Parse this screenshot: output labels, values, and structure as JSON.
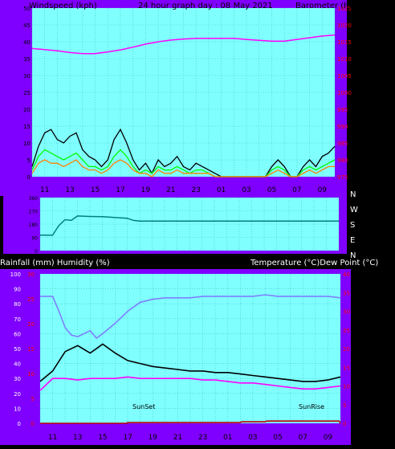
{
  "colors": {
    "background": "#000000",
    "frame": "#8000ff",
    "plot": "#80ffff",
    "grid": "#40c0c0",
    "axis_text_left": "#000000",
    "axis_text_right": "#ff0000",
    "label_text": "#ffffff",
    "black_line": "#000000",
    "magenta_line": "#ff00ff",
    "blue_line": "#7f7fff",
    "green_line": "#00ff00",
    "orange_line": "#ff8000",
    "teal_line": "#008080",
    "red_line": "#c00000"
  },
  "chart_data": [
    {
      "type": "line",
      "panel": "wind",
      "title": "24 hour graph day : 08 May 2021",
      "ylabel_left": "Windspeed (kph)",
      "ylabel_right": "Barometer (hpa)",
      "x_ticks": [
        "11",
        "13",
        "15",
        "17",
        "19",
        "21",
        "23",
        "01",
        "03",
        "05",
        "07",
        "09"
      ],
      "x_range_hours": [
        10,
        34
      ],
      "ylim_left": [
        0,
        50
      ],
      "yticks_left": [
        "0",
        "5",
        "10",
        "15",
        "20",
        "25",
        "30",
        "35",
        "40",
        "45",
        "50"
      ],
      "ylim_right": [
        975,
        1025
      ],
      "yticks_right": [
        "975",
        "980",
        "985",
        "990",
        "995",
        "1000",
        "1005",
        "1010",
        "1015",
        "1020",
        "1025"
      ],
      "grid": true,
      "series": [
        {
          "color": "#ff00ff",
          "axis": "right",
          "x": [
            10,
            11,
            12,
            13,
            14,
            15,
            16,
            17,
            18,
            19,
            20,
            21,
            22,
            23,
            24,
            25,
            26,
            27,
            28,
            29,
            30,
            31,
            32,
            33,
            34
          ],
          "values": [
            1013,
            1012.7,
            1012.3,
            1011.8,
            1011.5,
            1011.5,
            1012,
            1012.6,
            1013.4,
            1014.3,
            1015,
            1015.5,
            1015.8,
            1016,
            1016,
            1016,
            1016,
            1015.7,
            1015.4,
            1015.2,
            1015.2,
            1015.7,
            1016.2,
            1016.7,
            1017
          ]
        },
        {
          "color": "#000000",
          "axis": "left",
          "x": [
            10,
            10.5,
            11,
            11.5,
            12,
            12.5,
            13,
            13.5,
            14,
            14.5,
            15,
            15.5,
            16,
            16.5,
            17,
            17.5,
            18,
            18.5,
            19,
            19.5,
            20,
            20.5,
            21,
            21.5,
            22,
            22.5,
            23,
            23.5,
            24,
            24.5,
            25,
            25.5,
            26,
            26.5,
            27,
            27.5,
            28,
            28.5,
            29,
            29.5,
            30,
            30.5,
            31,
            31.5,
            32,
            32.5,
            33,
            33.5,
            34
          ],
          "values": [
            3,
            9,
            13,
            14,
            11,
            10,
            12,
            13,
            8,
            6,
            5,
            3,
            5,
            11,
            14,
            10,
            5,
            2,
            4,
            1,
            5,
            3,
            4,
            6,
            3,
            2,
            4,
            3,
            2,
            1,
            0,
            0,
            0,
            0,
            0,
            0,
            0,
            0,
            3,
            5,
            3,
            0,
            0,
            3,
            5,
            3,
            6,
            7,
            9
          ]
        },
        {
          "color": "#00ff00",
          "axis": "left",
          "x": [
            10,
            10.5,
            11,
            11.5,
            12,
            12.5,
            13,
            13.5,
            14,
            14.5,
            15,
            15.5,
            16,
            16.5,
            17,
            17.5,
            18,
            18.5,
            19,
            19.5,
            20,
            20.5,
            21,
            21.5,
            22,
            22.5,
            23,
            23.5,
            24,
            24.5,
            25,
            25.5,
            26,
            26.5,
            27,
            27.5,
            28,
            28.5,
            29,
            29.5,
            30,
            30.5,
            31,
            31.5,
            32,
            32.5,
            33,
            33.5,
            34
          ],
          "values": [
            2,
            6,
            8,
            7,
            6,
            5,
            6,
            7,
            5,
            3,
            3,
            2,
            3,
            6,
            8,
            6,
            3,
            1,
            2,
            1,
            3,
            2,
            2,
            3,
            2,
            1,
            2,
            2,
            1,
            0,
            0,
            0,
            0,
            0,
            0,
            0,
            0,
            0,
            2,
            3,
            2,
            0,
            0,
            2,
            3,
            2,
            3,
            4,
            5
          ]
        },
        {
          "color": "#ff8000",
          "axis": "left",
          "x": [
            10,
            10.5,
            11,
            11.5,
            12,
            12.5,
            13,
            13.5,
            14,
            14.5,
            15,
            15.5,
            16,
            16.5,
            17,
            17.5,
            18,
            18.5,
            19,
            19.5,
            20,
            20.5,
            21,
            21.5,
            22,
            22.5,
            23,
            23.5,
            24,
            24.5,
            25,
            25.5,
            26,
            26.5,
            27,
            27.5,
            28,
            28.5,
            29,
            29.5,
            30,
            30.5,
            31,
            31.5,
            32,
            32.5,
            33,
            33.5,
            34
          ],
          "values": [
            1,
            4,
            5,
            4,
            4,
            3,
            4,
            5,
            3,
            2,
            2,
            1,
            2,
            4,
            5,
            4,
            2,
            1,
            1,
            0,
            2,
            1,
            1,
            2,
            1,
            1,
            1,
            1,
            1,
            0,
            0,
            0,
            0,
            0,
            0,
            0,
            0,
            0,
            1,
            2,
            1,
            0,
            0,
            1,
            2,
            1,
            2,
            3,
            3
          ]
        }
      ]
    },
    {
      "type": "line",
      "panel": "direction",
      "y_categories_right": [
        "N",
        "W",
        "S",
        "E",
        "N"
      ],
      "yticks_left": [
        "0",
        "90",
        "180",
        "270",
        "360"
      ],
      "ylim": [
        0,
        360
      ],
      "series": [
        {
          "color": "#008080",
          "x": [
            10,
            11,
            11.5,
            12,
            12.5,
            13,
            14,
            15,
            16,
            17,
            17.5,
            18,
            19,
            20,
            22,
            24,
            26,
            28,
            30,
            32,
            34
          ],
          "values": [
            105,
            105,
            170,
            210,
            205,
            235,
            232,
            230,
            225,
            220,
            205,
            200,
            200,
            200,
            200,
            200,
            200,
            200,
            200,
            200,
            200
          ]
        }
      ]
    },
    {
      "type": "line",
      "panel": "weather",
      "ylabel_left": "Rainfall (mm)  Humidity (%)",
      "ylabel_right": "Temperature (°C)Dew Point (°C)",
      "x_ticks": [
        "11",
        "13",
        "15",
        "17",
        "19",
        "21",
        "23",
        "01",
        "03",
        "05",
        "07",
        "09"
      ],
      "ylim_left": [
        0,
        100
      ],
      "yticks_left": [
        "0",
        "10",
        "20",
        "30",
        "40",
        "50",
        "60",
        "70",
        "80",
        "90",
        "100"
      ],
      "yticks_left_red": [
        "0",
        "5",
        "10",
        "15",
        "20",
        "25",
        "30"
      ],
      "ylim_right": [
        0,
        40
      ],
      "yticks_right": [
        "0",
        "5",
        "10",
        "15",
        "20",
        "25",
        "30",
        "35",
        "40"
      ],
      "annotations": [
        "SunSet",
        "SunRise"
      ],
      "series": [
        {
          "color": "#7f7fff",
          "axis": "left",
          "x": [
            10,
            11,
            11.5,
            12,
            12.5,
            13,
            14,
            14.5,
            15,
            16,
            17,
            18,
            19,
            20,
            21,
            22,
            23,
            24,
            25,
            26,
            27,
            28,
            29,
            30,
            31,
            32,
            33,
            34
          ],
          "values": [
            85,
            85,
            75,
            64,
            59,
            58,
            62,
            57,
            60,
            67,
            75,
            81,
            83,
            84,
            84,
            84,
            85,
            85,
            85,
            85,
            85,
            86,
            85,
            85,
            85,
            85,
            85,
            84
          ]
        },
        {
          "color": "#000000",
          "axis": "left",
          "x": [
            10,
            11,
            12,
            13,
            14,
            15,
            16,
            17,
            18,
            19,
            20,
            21,
            22,
            23,
            24,
            25,
            26,
            27,
            28,
            29,
            30,
            31,
            32,
            33,
            34
          ],
          "values": [
            28,
            35,
            48,
            52,
            47,
            53,
            47,
            42,
            40,
            38,
            37,
            36,
            35,
            35,
            34,
            34,
            33,
            32,
            31,
            30,
            29,
            28,
            28,
            29,
            31
          ]
        },
        {
          "color": "#ff00ff",
          "axis": "left",
          "x": [
            10,
            11,
            12,
            13,
            14,
            15,
            16,
            17,
            18,
            19,
            20,
            21,
            22,
            23,
            24,
            25,
            26,
            27,
            28,
            29,
            30,
            31,
            32,
            33,
            34
          ],
          "values": [
            22,
            30,
            30,
            29,
            30,
            30,
            30,
            31,
            30,
            30,
            30,
            30,
            30,
            29,
            29,
            28,
            27,
            27,
            26,
            25,
            24,
            23,
            23,
            24,
            25
          ]
        },
        {
          "color": "#c00000",
          "axis": "left",
          "x": [
            10,
            16.9,
            17,
            26,
            26.1,
            28,
            28.1,
            33.9,
            34
          ],
          "values": [
            0,
            0,
            0.5,
            0.5,
            1,
            1,
            1.5,
            1.5,
            0
          ]
        }
      ]
    }
  ]
}
